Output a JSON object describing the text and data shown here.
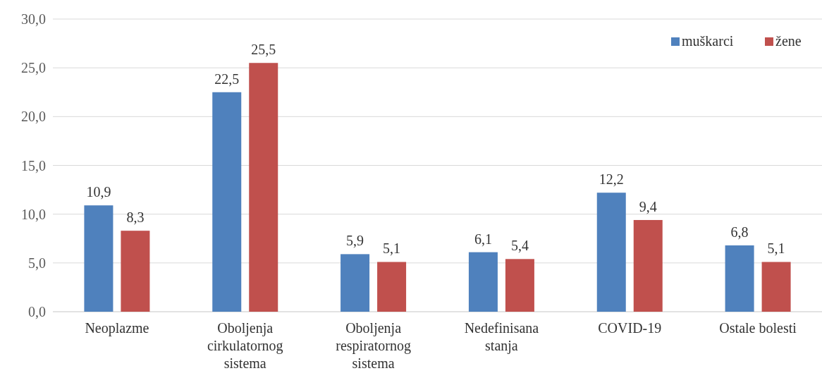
{
  "chart_data": {
    "type": "bar",
    "categories": [
      "Neoplazme",
      "Oboljenja cirkulatornog sistema",
      "Oboljenja respiratornog sistema",
      "Nedefinisana stanja",
      "COVID-19",
      "Ostale bolesti"
    ],
    "series": [
      {
        "name": "muškarci",
        "color": "#4f81bd",
        "values": [
          10.9,
          22.5,
          5.9,
          6.1,
          12.2,
          6.8
        ],
        "value_labels": [
          "10,9",
          "22,5",
          "5,9",
          "6,1",
          "12,2",
          "6,8"
        ]
      },
      {
        "name": "žene",
        "color": "#c0504d",
        "values": [
          8.3,
          25.5,
          5.1,
          5.4,
          9.4,
          5.1
        ],
        "value_labels": [
          "8,3",
          "25,5",
          "5,1",
          "5,4",
          "9,4",
          "5,1"
        ]
      }
    ],
    "ylim": [
      0,
      30
    ],
    "yticks": [
      {
        "value": 0,
        "label": "0,0"
      },
      {
        "value": 5,
        "label": "5,0"
      },
      {
        "value": 10,
        "label": "10,0"
      },
      {
        "value": 15,
        "label": "15,0"
      },
      {
        "value": 20,
        "label": "20,0"
      },
      {
        "value": 25,
        "label": "25,0"
      },
      {
        "value": 30,
        "label": "30,0"
      }
    ],
    "grid": "y",
    "legend": "top right"
  }
}
